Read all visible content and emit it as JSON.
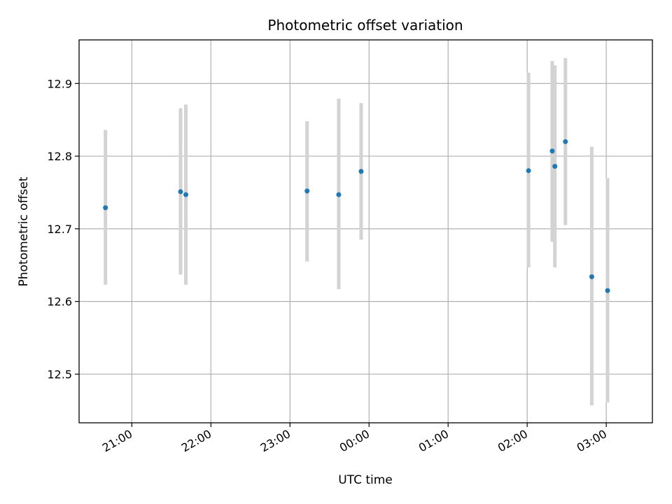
{
  "chart_data": {
    "type": "scatter",
    "title": "Photometric offset variation",
    "xlabel": "UTC time",
    "ylabel": "Photometric offset",
    "xlim": [
      "20:20",
      "03:35"
    ],
    "ylim": [
      12.433,
      12.96
    ],
    "grid": true,
    "xticks": [
      "21:00",
      "22:00",
      "23:00",
      "00:00",
      "01:00",
      "02:00",
      "03:00"
    ],
    "yticks": [
      12.5,
      12.6,
      12.7,
      12.8,
      12.9
    ],
    "ytick_labels": [
      "12.5",
      "12.6",
      "12.7",
      "12.8",
      "12.9"
    ],
    "point_color": "#1f77b4",
    "errorbar_color": "#d3d3d3",
    "points": [
      {
        "x": "20:40",
        "y": 12.729,
        "ylow": 12.623,
        "yhigh": 12.836
      },
      {
        "x": "21:37",
        "y": 12.751,
        "ylow": 12.637,
        "yhigh": 12.866
      },
      {
        "x": "21:41",
        "y": 12.747,
        "ylow": 12.623,
        "yhigh": 12.871
      },
      {
        "x": "23:13",
        "y": 12.752,
        "ylow": 12.655,
        "yhigh": 12.848
      },
      {
        "x": "23:37",
        "y": 12.747,
        "ylow": 12.617,
        "yhigh": 12.879
      },
      {
        "x": "23:54",
        "y": 12.779,
        "ylow": 12.685,
        "yhigh": 12.873
      },
      {
        "x": "02:01",
        "y": 12.78,
        "ylow": 12.647,
        "yhigh": 12.915
      },
      {
        "x": "02:19",
        "y": 12.807,
        "ylow": 12.682,
        "yhigh": 12.931
      },
      {
        "x": "02:21",
        "y": 12.786,
        "ylow": 12.647,
        "yhigh": 12.925
      },
      {
        "x": "02:29",
        "y": 12.82,
        "ylow": 12.705,
        "yhigh": 12.935
      },
      {
        "x": "02:49",
        "y": 12.634,
        "ylow": 12.457,
        "yhigh": 12.813
      },
      {
        "x": "03:01",
        "y": 12.615,
        "ylow": 12.461,
        "yhigh": 12.77
      }
    ]
  }
}
